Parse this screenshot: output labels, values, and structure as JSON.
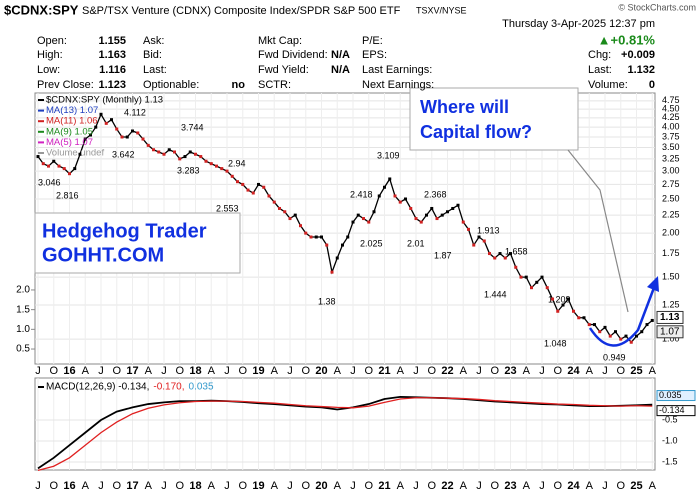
{
  "header": {
    "symbol": "$CDNX:SPY",
    "description": "S&P/TSX Venture (CDNX) Composite Index/SPDR S&P 500 ETF",
    "exchange": "TSXV/NYSE",
    "copyright": "© StockCharts.com",
    "datetime": "Thursday  3-Apr-2025  12:37 pm",
    "change_pct": "▲+0.81%"
  },
  "quote": {
    "columns": [
      [
        {
          "label": "Open:",
          "value": "1.155"
        },
        {
          "label": "High:",
          "value": "1.163"
        },
        {
          "label": "Low:",
          "value": "1.116"
        },
        {
          "label": "Prev Close:",
          "value": "1.123"
        }
      ],
      [
        {
          "label": "Ask:"
        },
        {
          "label": "Bid:"
        },
        {
          "label": "Last:"
        },
        {
          "label": "Optionable:",
          "value": "no"
        }
      ],
      [
        {
          "label": "Mkt Cap:"
        },
        {
          "label": "Fwd Dividend:",
          "value": "N/A"
        },
        {
          "label": "Fwd Yield:",
          "value": "N/A"
        },
        {
          "label": "SCTR:"
        }
      ],
      [
        {
          "label": "P/E:"
        },
        {
          "label": "EPS:"
        },
        {
          "label": "Last Earnings:"
        },
        {
          "label": "Next Earnings:"
        }
      ],
      [
        {
          "label": "Chg:",
          "value": "+0.009"
        },
        {
          "label": "Last:",
          "value": "1.132"
        },
        {
          "label": "Volume:",
          "value": "0"
        }
      ]
    ]
  },
  "callouts": {
    "question": [
      "Where will",
      "Capital flow?"
    ],
    "brand": [
      "Hedgehog Trader",
      "GOHHT.COM"
    ]
  },
  "chart_data": [
    {
      "type": "line",
      "legend": [
        {
          "text": "$CDNX:SPY (Monthly) 1.13",
          "color": "#000000"
        },
        {
          "text": "MA(13) 1.07",
          "color": "#1f3fbf"
        },
        {
          "text": "MA(11) 1.06",
          "color": "#d02020"
        },
        {
          "text": "MA(9) 1.05",
          "color": "#1c8a1c"
        },
        {
          "text": "MA(5) 1.07",
          "color": "#d020c0"
        },
        {
          "text": "Volume undef",
          "color": "#999999"
        }
      ],
      "log_scale": true,
      "grid": true,
      "categories": [
        "J",
        null,
        null,
        "O",
        null,
        null,
        "16",
        null,
        null,
        "A",
        null,
        null,
        "J",
        null,
        null,
        "O",
        null,
        null,
        "17",
        null,
        null,
        "A",
        null,
        null,
        "J",
        null,
        null,
        "O",
        null,
        null,
        "18",
        null,
        null,
        "A",
        null,
        null,
        "J",
        null,
        null,
        "O",
        null,
        null,
        "19",
        null,
        null,
        "A",
        null,
        null,
        "J",
        null,
        null,
        "O",
        null,
        null,
        "20",
        null,
        null,
        "A",
        null,
        null,
        "J",
        null,
        null,
        "O",
        null,
        null,
        "21",
        null,
        null,
        "A",
        null,
        null,
        "J",
        null,
        null,
        "O",
        null,
        null,
        "22",
        null,
        null,
        "A",
        null,
        null,
        "J",
        null,
        null,
        "O",
        null,
        null,
        "23",
        null,
        null,
        "A",
        null,
        null,
        "J",
        null,
        null,
        "O",
        null,
        null,
        "24",
        null,
        null,
        "A",
        null,
        null,
        "J",
        null,
        null,
        "O",
        null,
        null,
        "25",
        null,
        null,
        "A"
      ],
      "series": [
        {
          "name": "$CDNX:SPY",
          "color": "#000000",
          "values": [
            3.3,
            3.15,
            3.1,
            3.2,
            3.1,
            3.05,
            2.95,
            3.05,
            3.35,
            3.7,
            3.8,
            4.0,
            4.35,
            4.1,
            4.2,
            3.95,
            3.75,
            3.75,
            3.9,
            3.85,
            3.7,
            3.55,
            3.45,
            3.4,
            3.35,
            3.45,
            3.4,
            3.25,
            3.3,
            3.4,
            3.35,
            3.3,
            3.2,
            3.15,
            3.1,
            3.05,
            3.0,
            2.9,
            2.8,
            2.75,
            2.65,
            2.6,
            2.75,
            2.7,
            2.55,
            2.45,
            2.35,
            2.3,
            2.2,
            2.25,
            2.1,
            2.0,
            1.95,
            1.95,
            1.95,
            1.85,
            1.55,
            1.7,
            1.85,
            1.95,
            2.15,
            2.25,
            2.2,
            2.15,
            2.3,
            2.55,
            2.7,
            2.85,
            2.55,
            2.45,
            2.5,
            2.35,
            2.2,
            2.15,
            2.25,
            2.35,
            2.2,
            2.25,
            2.3,
            2.35,
            2.4,
            2.15,
            2.05,
            1.85,
            1.95,
            1.9,
            1.75,
            1.7,
            1.75,
            1.7,
            1.75,
            1.6,
            1.5,
            1.5,
            1.4,
            1.45,
            1.5,
            1.4,
            1.3,
            1.2,
            1.25,
            1.3,
            1.2,
            1.15,
            1.15,
            1.1,
            1.1,
            1.05,
            1.08,
            1.02,
            1.05,
            1.0,
            1.02,
            0.98,
            1.02,
            1.05,
            1.1,
            1.13
          ]
        }
      ],
      "price_labels": [
        3.046,
        2.816,
        4.112,
        3.642,
        3.744,
        3.283,
        2.94,
        2.553,
        1.38,
        2.418,
        3.109,
        2.025,
        2.368,
        2.01,
        1.87,
        1.913,
        1.658,
        1.444,
        1.209,
        1.048,
        0.949
      ],
      "price_tags": [
        1.13,
        1.07
      ],
      "ylim": [
        0.85,
        5.0
      ],
      "yticks": [
        4.75,
        {
          "value": 4.5,
          "label": "4.50"
        },
        4.25,
        {
          "value": 4,
          "label": "4.00"
        },
        3.75,
        {
          "value": 3.5,
          "label": "3.50"
        },
        3.25,
        {
          "value": 3,
          "label": "3.00"
        },
        2.75,
        {
          "value": 2.5,
          "label": "2.50"
        },
        2.25,
        {
          "value": 2,
          "label": "2.00"
        },
        1.75,
        {
          "value": 1.5,
          "label": "1.50"
        },
        1.25,
        {
          "value": 1,
          "label": "1.00"
        }
      ],
      "vlim": [
        0.12,
        7.0
      ],
      "vticks": [
        {
          "value": 2,
          "label": "2.0"
        },
        1.5,
        {
          "value": 1,
          "label": "1.0"
        },
        0.5
      ]
    },
    {
      "type": "line",
      "legend": [
        {
          "text": "MACD(12,26,9) -0.134,",
          "color": "#000000"
        },
        {
          "text": "-0.170,",
          "color": "#e02020"
        },
        {
          "text": "0.035",
          "color": "#3399cc"
        }
      ],
      "categories": [
        "J",
        "O",
        "16",
        "A",
        "J",
        "O",
        "17",
        "A",
        "J",
        "O",
        "18",
        "A",
        "J",
        "O",
        "19",
        "A",
        "J",
        "O",
        "20",
        "A",
        "J",
        "O",
        "21",
        "A",
        "J",
        "O",
        "22",
        "A",
        "J",
        "O",
        "23",
        "A",
        "J",
        "O",
        "24",
        "A",
        "J",
        "O",
        "25",
        "A"
      ],
      "series": [
        {
          "name": "MACD",
          "color": "#000000",
          "values": [
            -1.65,
            -1.4,
            -1.1,
            -0.8,
            -0.5,
            -0.3,
            -0.2,
            -0.12,
            -0.08,
            -0.05,
            -0.05,
            -0.04,
            -0.05,
            -0.07,
            -0.1,
            -0.12,
            -0.15,
            -0.18,
            -0.2,
            -0.25,
            -0.2,
            -0.12,
            0.0,
            0.05,
            0.04,
            0.03,
            0.02,
            0.0,
            -0.03,
            -0.06,
            -0.08,
            -0.1,
            -0.12,
            -0.13,
            -0.15,
            -0.17,
            -0.17,
            -0.16,
            -0.15,
            -0.134
          ]
        },
        {
          "name": "Signal",
          "color": "#e02020",
          "values": [
            -1.7,
            -1.6,
            -1.4,
            -1.1,
            -0.8,
            -0.55,
            -0.35,
            -0.22,
            -0.14,
            -0.09,
            -0.06,
            -0.05,
            -0.05,
            -0.06,
            -0.08,
            -0.1,
            -0.13,
            -0.16,
            -0.18,
            -0.2,
            -0.21,
            -0.17,
            -0.08,
            0.0,
            0.03,
            0.03,
            0.02,
            0.01,
            -0.01,
            -0.04,
            -0.06,
            -0.08,
            -0.1,
            -0.12,
            -0.13,
            -0.15,
            -0.16,
            -0.17,
            -0.16,
            -0.17
          ]
        }
      ],
      "tags": [
        {
          "value": 0.035,
          "color": "#3399cc"
        },
        {
          "value": -0.134,
          "color": "#000000"
        }
      ],
      "ylim": [
        -1.69,
        0.5
      ],
      "yticks": [
        -0.5,
        {
          "value": -1,
          "label": "-1.0"
        },
        -1.5
      ],
      "grid": true
    }
  ]
}
